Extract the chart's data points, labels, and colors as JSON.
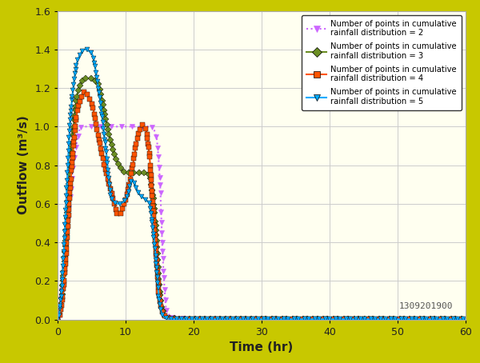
{
  "background_color": "#c8c800",
  "plot_bg_color": "#fffff0",
  "grid_color": "#cccccc",
  "xlabel": "Time (hr)",
  "ylabel": "Outflow (m³/s)",
  "xlim": [
    0,
    60
  ],
  "ylim": [
    0,
    1.6
  ],
  "xticks": [
    0,
    10,
    20,
    30,
    40,
    50,
    60
  ],
  "yticks": [
    0,
    0.2,
    0.4,
    0.6,
    0.8,
    1.0,
    1.2,
    1.4,
    1.6
  ],
  "watermark": "1309201900",
  "series": [
    {
      "label": "Number of points in cumulative\nrainfall distribution = 2",
      "color": "#cc66ff",
      "marker": "v",
      "linestyle": ":",
      "linewidth": 1.5,
      "markersize": 5,
      "marker_interval": 1.0,
      "ctrl_x": [
        0,
        0.5,
        1.5,
        2.5,
        3.5,
        5.0,
        7.0,
        9.0,
        11.0,
        13.0,
        13.8,
        14.5,
        15.0,
        15.5,
        16.0,
        17.0,
        18.0,
        20.0,
        25.0,
        30.0,
        40.0,
        50.0,
        60.0
      ],
      "ctrl_y": [
        0,
        0.12,
        0.5,
        0.85,
        1.0,
        1.0,
        1.0,
        1.0,
        1.0,
        1.0,
        1.0,
        0.95,
        0.75,
        0.3,
        0.05,
        0.01,
        0.005,
        0.003,
        0.002,
        0.001,
        0.001,
        0.001,
        0.001
      ]
    },
    {
      "label": "Number of points in cumulative\nrainfall distribution = 3",
      "color": "#6b8e23",
      "marker": "D",
      "linestyle": "-",
      "linewidth": 1.5,
      "markersize": 4,
      "marker_interval": 0.5,
      "ctrl_x": [
        0,
        0.5,
        1.0,
        2.0,
        3.0,
        4.0,
        5.0,
        6.0,
        7.0,
        8.0,
        9.0,
        10.0,
        11.0,
        12.0,
        13.0,
        13.5,
        14.0,
        14.5,
        15.0,
        15.5,
        16.0,
        17.0,
        18.0,
        20.0,
        25.0,
        30.0
      ],
      "ctrl_y": [
        0,
        0.08,
        0.3,
        0.85,
        1.18,
        1.25,
        1.25,
        1.22,
        1.05,
        0.9,
        0.8,
        0.76,
        0.76,
        0.76,
        0.76,
        0.75,
        0.65,
        0.45,
        0.15,
        0.04,
        0.01,
        0.005,
        0.003,
        0.001,
        0.001,
        0.001
      ]
    },
    {
      "label": "Number of points in cumulative\nrainfall distribution = 4",
      "color": "#ff5500",
      "marker": "s",
      "linestyle": "-",
      "linewidth": 1.5,
      "markersize": 4,
      "marker_interval": 0.5,
      "ctrl_x": [
        0,
        0.5,
        1.0,
        2.0,
        3.0,
        4.0,
        5.0,
        6.0,
        7.0,
        8.0,
        9.0,
        10.0,
        11.0,
        12.0,
        12.5,
        13.0,
        13.5,
        14.0,
        14.5,
        15.0,
        15.5,
        16.0,
        17.0,
        18.0,
        20.0,
        25.0,
        30.0
      ],
      "ctrl_y": [
        0,
        0.05,
        0.22,
        0.75,
        1.1,
        1.18,
        1.12,
        0.95,
        0.78,
        0.65,
        0.54,
        0.62,
        0.79,
        0.98,
        1.01,
        0.98,
        0.85,
        0.6,
        0.35,
        0.1,
        0.03,
        0.01,
        0.004,
        0.002,
        0.001,
        0.001,
        0.001
      ]
    },
    {
      "label": "Number of points in cumulative\nrainfall distribution = 5",
      "color": "#00aaff",
      "marker": "v",
      "linestyle": "-",
      "linewidth": 1.5,
      "markersize": 4,
      "marker_interval": 0.5,
      "ctrl_x": [
        0,
        0.5,
        1.0,
        2.0,
        3.0,
        4.0,
        5.0,
        6.0,
        7.0,
        8.0,
        9.0,
        10.0,
        11.0,
        12.0,
        13.0,
        13.5,
        14.0,
        14.5,
        15.0,
        15.5,
        16.0,
        17.0,
        18.0,
        20.0,
        25.0,
        30.0
      ],
      "ctrl_y": [
        0,
        0.1,
        0.42,
        1.1,
        1.35,
        1.4,
        1.38,
        1.2,
        0.92,
        0.62,
        0.6,
        0.62,
        0.72,
        0.65,
        0.62,
        0.6,
        0.48,
        0.3,
        0.08,
        0.02,
        0.005,
        0.002,
        0.001,
        0.001,
        0.001,
        0.001
      ]
    }
  ]
}
